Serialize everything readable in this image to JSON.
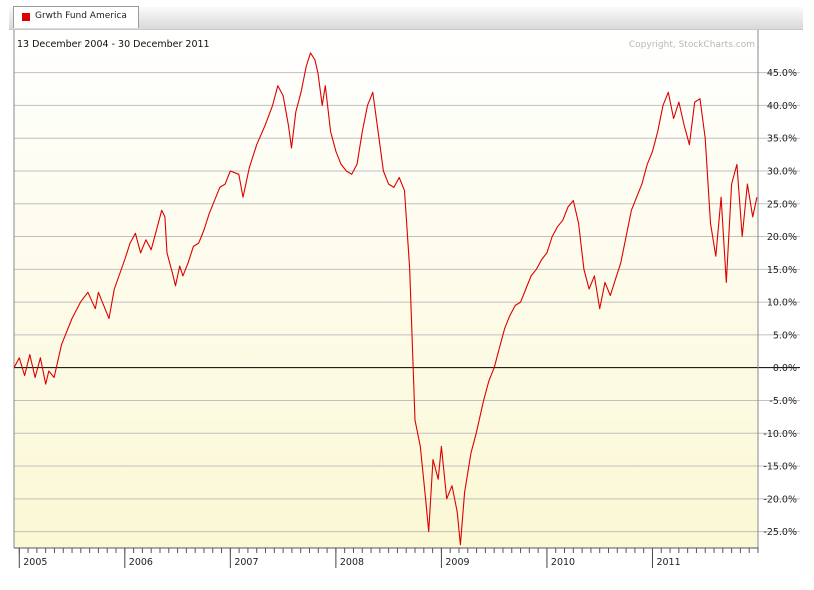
{
  "legend": {
    "label": "Grwth Fund America",
    "color": "#dd0000"
  },
  "header": {
    "date_range": "13 December 2004 - 30 December 2011",
    "copyright": "Copyright, StockCharts.com"
  },
  "colors": {
    "line": "#dd0000",
    "background_top": "#ffffff",
    "background_bottom": "#fbf8d4",
    "grid": "#c0c0c0",
    "zero_line": "#000000"
  },
  "chart_data": {
    "type": "line",
    "series": [
      {
        "name": "Grwth Fund America",
        "points": [
          [
            2004.95,
            0.0
          ],
          [
            2005.0,
            1.5
          ],
          [
            2005.05,
            -1.2
          ],
          [
            2005.1,
            2.0
          ],
          [
            2005.15,
            -1.5
          ],
          [
            2005.2,
            1.5
          ],
          [
            2005.25,
            -2.5
          ],
          [
            2005.28,
            -0.5
          ],
          [
            2005.33,
            -1.5
          ],
          [
            2005.4,
            3.5
          ],
          [
            2005.5,
            7.5
          ],
          [
            2005.58,
            10.0
          ],
          [
            2005.65,
            11.5
          ],
          [
            2005.72,
            9.0
          ],
          [
            2005.75,
            11.5
          ],
          [
            2005.8,
            9.5
          ],
          [
            2005.85,
            7.5
          ],
          [
            2005.9,
            12.0
          ],
          [
            2006.0,
            16.5
          ],
          [
            2006.05,
            19.0
          ],
          [
            2006.1,
            20.5
          ],
          [
            2006.15,
            17.5
          ],
          [
            2006.2,
            19.5
          ],
          [
            2006.25,
            18.0
          ],
          [
            2006.3,
            21.0
          ],
          [
            2006.35,
            24.0
          ],
          [
            2006.38,
            23.0
          ],
          [
            2006.4,
            17.5
          ],
          [
            2006.45,
            14.5
          ],
          [
            2006.48,
            12.5
          ],
          [
            2006.52,
            15.5
          ],
          [
            2006.55,
            14.0
          ],
          [
            2006.6,
            16.0
          ],
          [
            2006.65,
            18.5
          ],
          [
            2006.7,
            19.0
          ],
          [
            2006.75,
            21.0
          ],
          [
            2006.8,
            23.5
          ],
          [
            2006.9,
            27.5
          ],
          [
            2006.95,
            28.0
          ],
          [
            2007.0,
            30.0
          ],
          [
            2007.08,
            29.5
          ],
          [
            2007.12,
            26.0
          ],
          [
            2007.18,
            30.5
          ],
          [
            2007.25,
            34.0
          ],
          [
            2007.33,
            37.0
          ],
          [
            2007.4,
            40.0
          ],
          [
            2007.45,
            43.0
          ],
          [
            2007.5,
            41.5
          ],
          [
            2007.55,
            37.0
          ],
          [
            2007.58,
            33.5
          ],
          [
            2007.62,
            39.0
          ],
          [
            2007.67,
            42.0
          ],
          [
            2007.72,
            46.0
          ],
          [
            2007.76,
            48.0
          ],
          [
            2007.8,
            47.0
          ],
          [
            2007.83,
            45.0
          ],
          [
            2007.87,
            40.0
          ],
          [
            2007.9,
            43.0
          ],
          [
            2007.95,
            36.0
          ],
          [
            2008.0,
            33.0
          ],
          [
            2008.05,
            31.0
          ],
          [
            2008.1,
            30.0
          ],
          [
            2008.15,
            29.5
          ],
          [
            2008.2,
            31.0
          ],
          [
            2008.25,
            36.0
          ],
          [
            2008.3,
            40.0
          ],
          [
            2008.35,
            42.0
          ],
          [
            2008.4,
            36.0
          ],
          [
            2008.45,
            30.0
          ],
          [
            2008.5,
            28.0
          ],
          [
            2008.55,
            27.5
          ],
          [
            2008.6,
            29.0
          ],
          [
            2008.65,
            27.0
          ],
          [
            2008.7,
            15.0
          ],
          [
            2008.75,
            -8.0
          ],
          [
            2008.8,
            -12.0
          ],
          [
            2008.85,
            -20.0
          ],
          [
            2008.88,
            -25.0
          ],
          [
            2008.92,
            -14.0
          ],
          [
            2008.97,
            -17.0
          ],
          [
            2009.0,
            -12.0
          ],
          [
            2009.05,
            -20.0
          ],
          [
            2009.1,
            -18.0
          ],
          [
            2009.15,
            -22.0
          ],
          [
            2009.18,
            -27.0
          ],
          [
            2009.22,
            -19.0
          ],
          [
            2009.28,
            -13.0
          ],
          [
            2009.33,
            -10.0
          ],
          [
            2009.4,
            -5.0
          ],
          [
            2009.45,
            -2.0
          ],
          [
            2009.5,
            0.0
          ],
          [
            2009.55,
            3.0
          ],
          [
            2009.6,
            6.0
          ],
          [
            2009.65,
            8.0
          ],
          [
            2009.7,
            9.5
          ],
          [
            2009.75,
            10.0
          ],
          [
            2009.8,
            12.0
          ],
          [
            2009.85,
            14.0
          ],
          [
            2009.9,
            15.0
          ],
          [
            2009.95,
            16.5
          ],
          [
            2010.0,
            17.5
          ],
          [
            2010.05,
            20.0
          ],
          [
            2010.1,
            21.5
          ],
          [
            2010.15,
            22.5
          ],
          [
            2010.2,
            24.5
          ],
          [
            2010.25,
            25.5
          ],
          [
            2010.3,
            22.0
          ],
          [
            2010.35,
            15.0
          ],
          [
            2010.4,
            12.0
          ],
          [
            2010.45,
            14.0
          ],
          [
            2010.5,
            9.0
          ],
          [
            2010.55,
            13.0
          ],
          [
            2010.6,
            11.0
          ],
          [
            2010.65,
            13.5
          ],
          [
            2010.7,
            16.0
          ],
          [
            2010.75,
            20.0
          ],
          [
            2010.8,
            24.0
          ],
          [
            2010.85,
            26.0
          ],
          [
            2010.9,
            28.0
          ],
          [
            2010.95,
            31.0
          ],
          [
            2011.0,
            33.0
          ],
          [
            2011.05,
            36.0
          ],
          [
            2011.1,
            40.0
          ],
          [
            2011.15,
            42.0
          ],
          [
            2011.2,
            38.0
          ],
          [
            2011.25,
            40.5
          ],
          [
            2011.3,
            37.0
          ],
          [
            2011.35,
            34.0
          ],
          [
            2011.4,
            40.5
          ],
          [
            2011.45,
            41.0
          ],
          [
            2011.5,
            35.0
          ],
          [
            2011.55,
            22.0
          ],
          [
            2011.6,
            17.0
          ],
          [
            2011.65,
            26.0
          ],
          [
            2011.7,
            13.0
          ],
          [
            2011.75,
            28.0
          ],
          [
            2011.8,
            31.0
          ],
          [
            2011.85,
            20.0
          ],
          [
            2011.9,
            28.0
          ],
          [
            2011.95,
            23.0
          ],
          [
            2011.99,
            26.0
          ]
        ]
      }
    ],
    "y_ticks": [
      "45.0%",
      "40.0%",
      "35.0%",
      "30.0%",
      "25.0%",
      "20.0%",
      "15.0%",
      "10.0%",
      "5.0%",
      "0.0%",
      "-5.0%",
      "-10.0%",
      "-15.0%",
      "-20.0%",
      "-25.0%"
    ],
    "y_tick_values": [
      45,
      40,
      35,
      30,
      25,
      20,
      15,
      10,
      5,
      0,
      -5,
      -10,
      -15,
      -20,
      -25
    ],
    "x_ticks": [
      "2005",
      "2006",
      "2007",
      "2008",
      "2009",
      "2010",
      "2011"
    ],
    "x_tick_values": [
      2005,
      2006,
      2007,
      2008,
      2009,
      2010,
      2011
    ],
    "xlim": [
      2004.95,
      2012.0
    ],
    "ylim": [
      -27.5,
      51.5
    ],
    "grid": true
  }
}
